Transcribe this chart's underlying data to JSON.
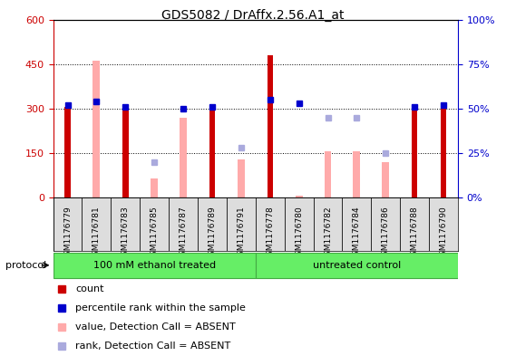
{
  "title": "GDS5082 / DrAffx.2.56.A1_at",
  "samples": [
    "GSM1176779",
    "GSM1176781",
    "GSM1176783",
    "GSM1176785",
    "GSM1176787",
    "GSM1176789",
    "GSM1176791",
    "GSM1176778",
    "GSM1176780",
    "GSM1176782",
    "GSM1176784",
    "GSM1176786",
    "GSM1176788",
    "GSM1176790"
  ],
  "count": [
    305,
    0,
    300,
    0,
    0,
    297,
    0,
    480,
    0,
    0,
    0,
    0,
    305,
    308
  ],
  "percentile_rank": [
    52,
    54,
    51,
    null,
    50,
    51,
    null,
    55,
    53,
    null,
    null,
    null,
    51,
    52
  ],
  "absent_value": [
    null,
    460,
    null,
    65,
    270,
    null,
    130,
    null,
    5,
    155,
    155,
    120,
    null,
    null
  ],
  "absent_rank_pct": [
    null,
    54,
    null,
    20,
    null,
    null,
    28,
    null,
    null,
    45,
    45,
    25,
    null,
    null
  ],
  "group_boundary": 7,
  "ylim_left": [
    0,
    600
  ],
  "ylim_right": [
    0,
    100
  ],
  "yticks_left": [
    0,
    150,
    300,
    450,
    600
  ],
  "yticks_right": [
    0,
    25,
    50,
    75,
    100
  ],
  "ytick_labels_left": [
    "0",
    "150",
    "300",
    "450",
    "600"
  ],
  "ytick_labels_right": [
    "0%",
    "25%",
    "50%",
    "75%",
    "100%"
  ],
  "color_count": "#cc0000",
  "color_rank": "#0000cc",
  "color_absent_value": "#ffaaaa",
  "color_absent_rank": "#aaaadd",
  "group_color": "#66ee66",
  "group_labels": [
    "100 mM ethanol treated",
    "untreated control"
  ],
  "protocol_label": "protocol",
  "legend_items": [
    {
      "color": "#cc0000",
      "label": "count"
    },
    {
      "color": "#0000cc",
      "label": "percentile rank within the sample"
    },
    {
      "color": "#ffaaaa",
      "label": "value, Detection Call = ABSENT"
    },
    {
      "color": "#aaaadd",
      "label": "rank, Detection Call = ABSENT"
    }
  ]
}
